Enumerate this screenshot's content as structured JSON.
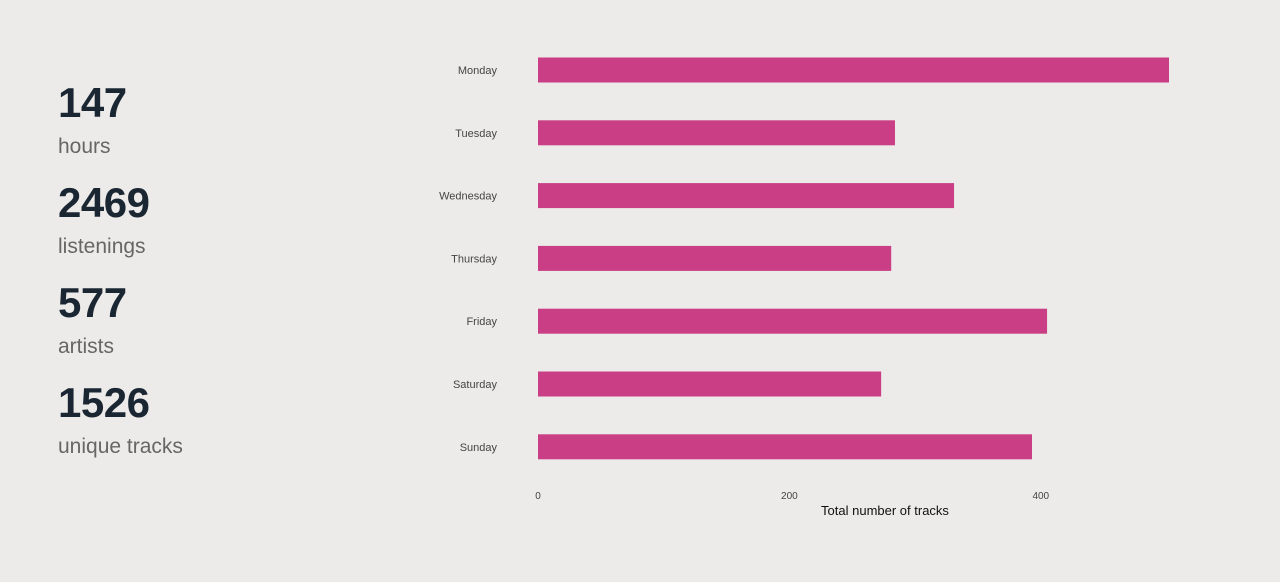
{
  "summary": {
    "stats": [
      {
        "value": "147",
        "label": "hours"
      },
      {
        "value": "2469",
        "label": "listenings"
      },
      {
        "value": "577",
        "label": "artists"
      },
      {
        "value": "1526",
        "label": "unique tracks"
      }
    ]
  },
  "chart_data": {
    "type": "bar",
    "orientation": "horizontal",
    "categories": [
      "Monday",
      "Tuesday",
      "Wednesday",
      "Thursday",
      "Friday",
      "Saturday",
      "Sunday"
    ],
    "values": [
      502,
      284,
      331,
      281,
      405,
      273,
      393
    ],
    "xlabel": "Total number of tracks",
    "ylabel": "",
    "xlim": [
      0,
      502
    ],
    "xticks": [
      0,
      200,
      400
    ],
    "grid": false,
    "bar_color": "#C93E84"
  }
}
